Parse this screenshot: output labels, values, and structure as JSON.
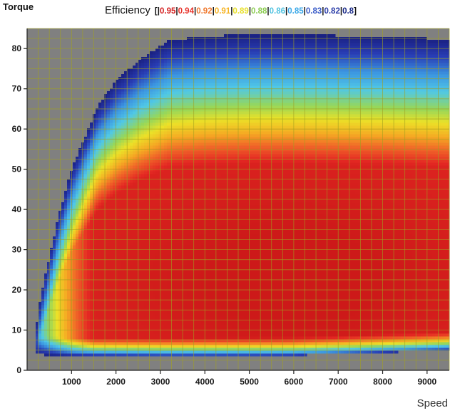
{
  "chart_data": {
    "type": "heatmap",
    "title": "",
    "ylabel": "Torque",
    "xlabel": "Speed",
    "legend_title": "Efficiency",
    "legend": [
      {
        "label": "0.95",
        "color": "#d42020"
      },
      {
        "label": "0.94",
        "color": "#e8322a"
      },
      {
        "label": "0.92",
        "color": "#f07a30"
      },
      {
        "label": "0.91",
        "color": "#f5b322"
      },
      {
        "label": "0.89",
        "color": "#e8e02a"
      },
      {
        "label": "0.88",
        "color": "#8ccc52"
      },
      {
        "label": "0.86",
        "color": "#4fc2e0"
      },
      {
        "label": "0.85",
        "color": "#3aa8e8"
      },
      {
        "label": "0.83",
        "color": "#3a5cc8"
      },
      {
        "label": "0.82",
        "color": "#2a3ca8"
      },
      {
        "label": "0.8",
        "color": "#1a2a88"
      }
    ],
    "x_ticks": [
      1000,
      2000,
      3000,
      4000,
      5000,
      6000,
      7000,
      8000,
      9000
    ],
    "y_ticks": [
      0,
      10,
      20,
      30,
      40,
      50,
      60,
      70,
      80
    ],
    "xlim": [
      0,
      9500
    ],
    "ylim": [
      0,
      85
    ],
    "grid": true,
    "legend_position": "top",
    "background_color": "#808080",
    "grid_color": "#a0a020",
    "max_torque_curve": [
      [
        200,
        4
      ],
      [
        200,
        10
      ],
      [
        300,
        18
      ],
      [
        500,
        28
      ],
      [
        700,
        38
      ],
      [
        1000,
        50
      ],
      [
        1300,
        58
      ],
      [
        1600,
        66
      ],
      [
        2000,
        72
      ],
      [
        2500,
        77
      ],
      [
        3200,
        82
      ],
      [
        4000,
        83
      ],
      [
        5000,
        83.5
      ],
      [
        6000,
        83.5
      ],
      [
        7000,
        83.2
      ],
      [
        8000,
        83
      ],
      [
        9000,
        82.5
      ],
      [
        9500,
        82.3
      ]
    ],
    "min_torque_curve": [
      [
        200,
        4
      ],
      [
        1000,
        3.6
      ],
      [
        3000,
        3.6
      ],
      [
        6000,
        3.8
      ],
      [
        8000,
        4.5
      ],
      [
        9500,
        5
      ]
    ],
    "peak_region": {
      "speed": 6000,
      "torque": 23,
      "efficiency": 0.95
    }
  }
}
